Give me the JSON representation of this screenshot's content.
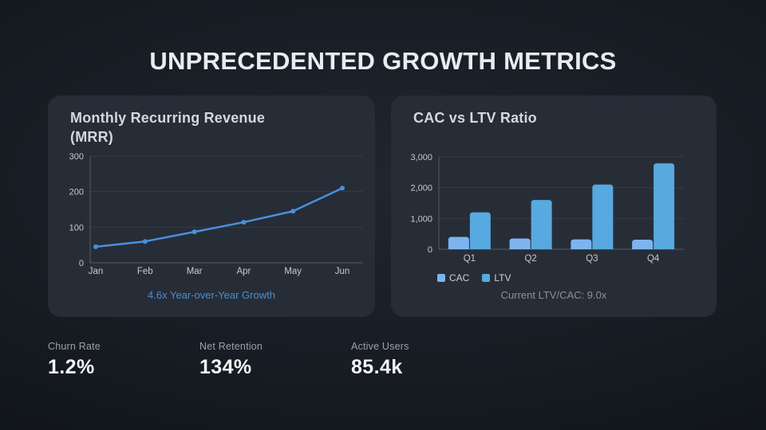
{
  "slide": {
    "title": "UNPRECEDENTED GROWTH METRICS"
  },
  "mrr_card": {
    "title": "Monthly Recurring Revenue (MRR)",
    "caption": "4.6x Year-over-Year Growth",
    "caption_color": "#4a8fd0"
  },
  "cac_card": {
    "title": "CAC vs LTV Ratio",
    "caption": "Current LTV/CAC: 9.0x",
    "caption_color": "#8b9099"
  },
  "stats": [
    {
      "label": "Churn Rate",
      "value": "1.2%"
    },
    {
      "label": "Net Retention",
      "value": "134%"
    },
    {
      "label": "Active Users",
      "value": "85.4k"
    }
  ],
  "chart_data": [
    {
      "type": "line",
      "title": "Monthly Recurring Revenue (MRR)",
      "x": [
        "Jan",
        "Feb",
        "Mar",
        "Apr",
        "May",
        "Jun"
      ],
      "values": [
        45,
        60,
        87,
        114,
        145,
        210
      ],
      "ylim": [
        0,
        300
      ],
      "yticks": [
        0,
        100,
        200,
        300
      ],
      "line_color": "#4a90dc",
      "grid": true,
      "legend_position": "none",
      "annotation": "4.6x Year-over-Year Growth"
    },
    {
      "type": "bar",
      "title": "CAC vs LTV Ratio",
      "categories": [
        "Q1",
        "Q2",
        "Q3",
        "Q4"
      ],
      "series": [
        {
          "name": "CAC",
          "values": [
            400,
            350,
            320,
            310
          ],
          "color": "#7db4f0"
        },
        {
          "name": "LTV",
          "values": [
            1200,
            1600,
            2100,
            2790
          ],
          "color": "#57a9e0"
        }
      ],
      "ylim": [
        0,
        3000
      ],
      "yticks": [
        0,
        1000,
        2000,
        3000
      ],
      "grid": true,
      "legend_position": "bottom-left",
      "annotation": "Current LTV/CAC: 9.0x"
    }
  ],
  "colors": {
    "card_background": "#272d37",
    "accent_blue": "#4a90dc",
    "cac_bar": "#7db4f0",
    "ltv_bar": "#57a9e0"
  }
}
